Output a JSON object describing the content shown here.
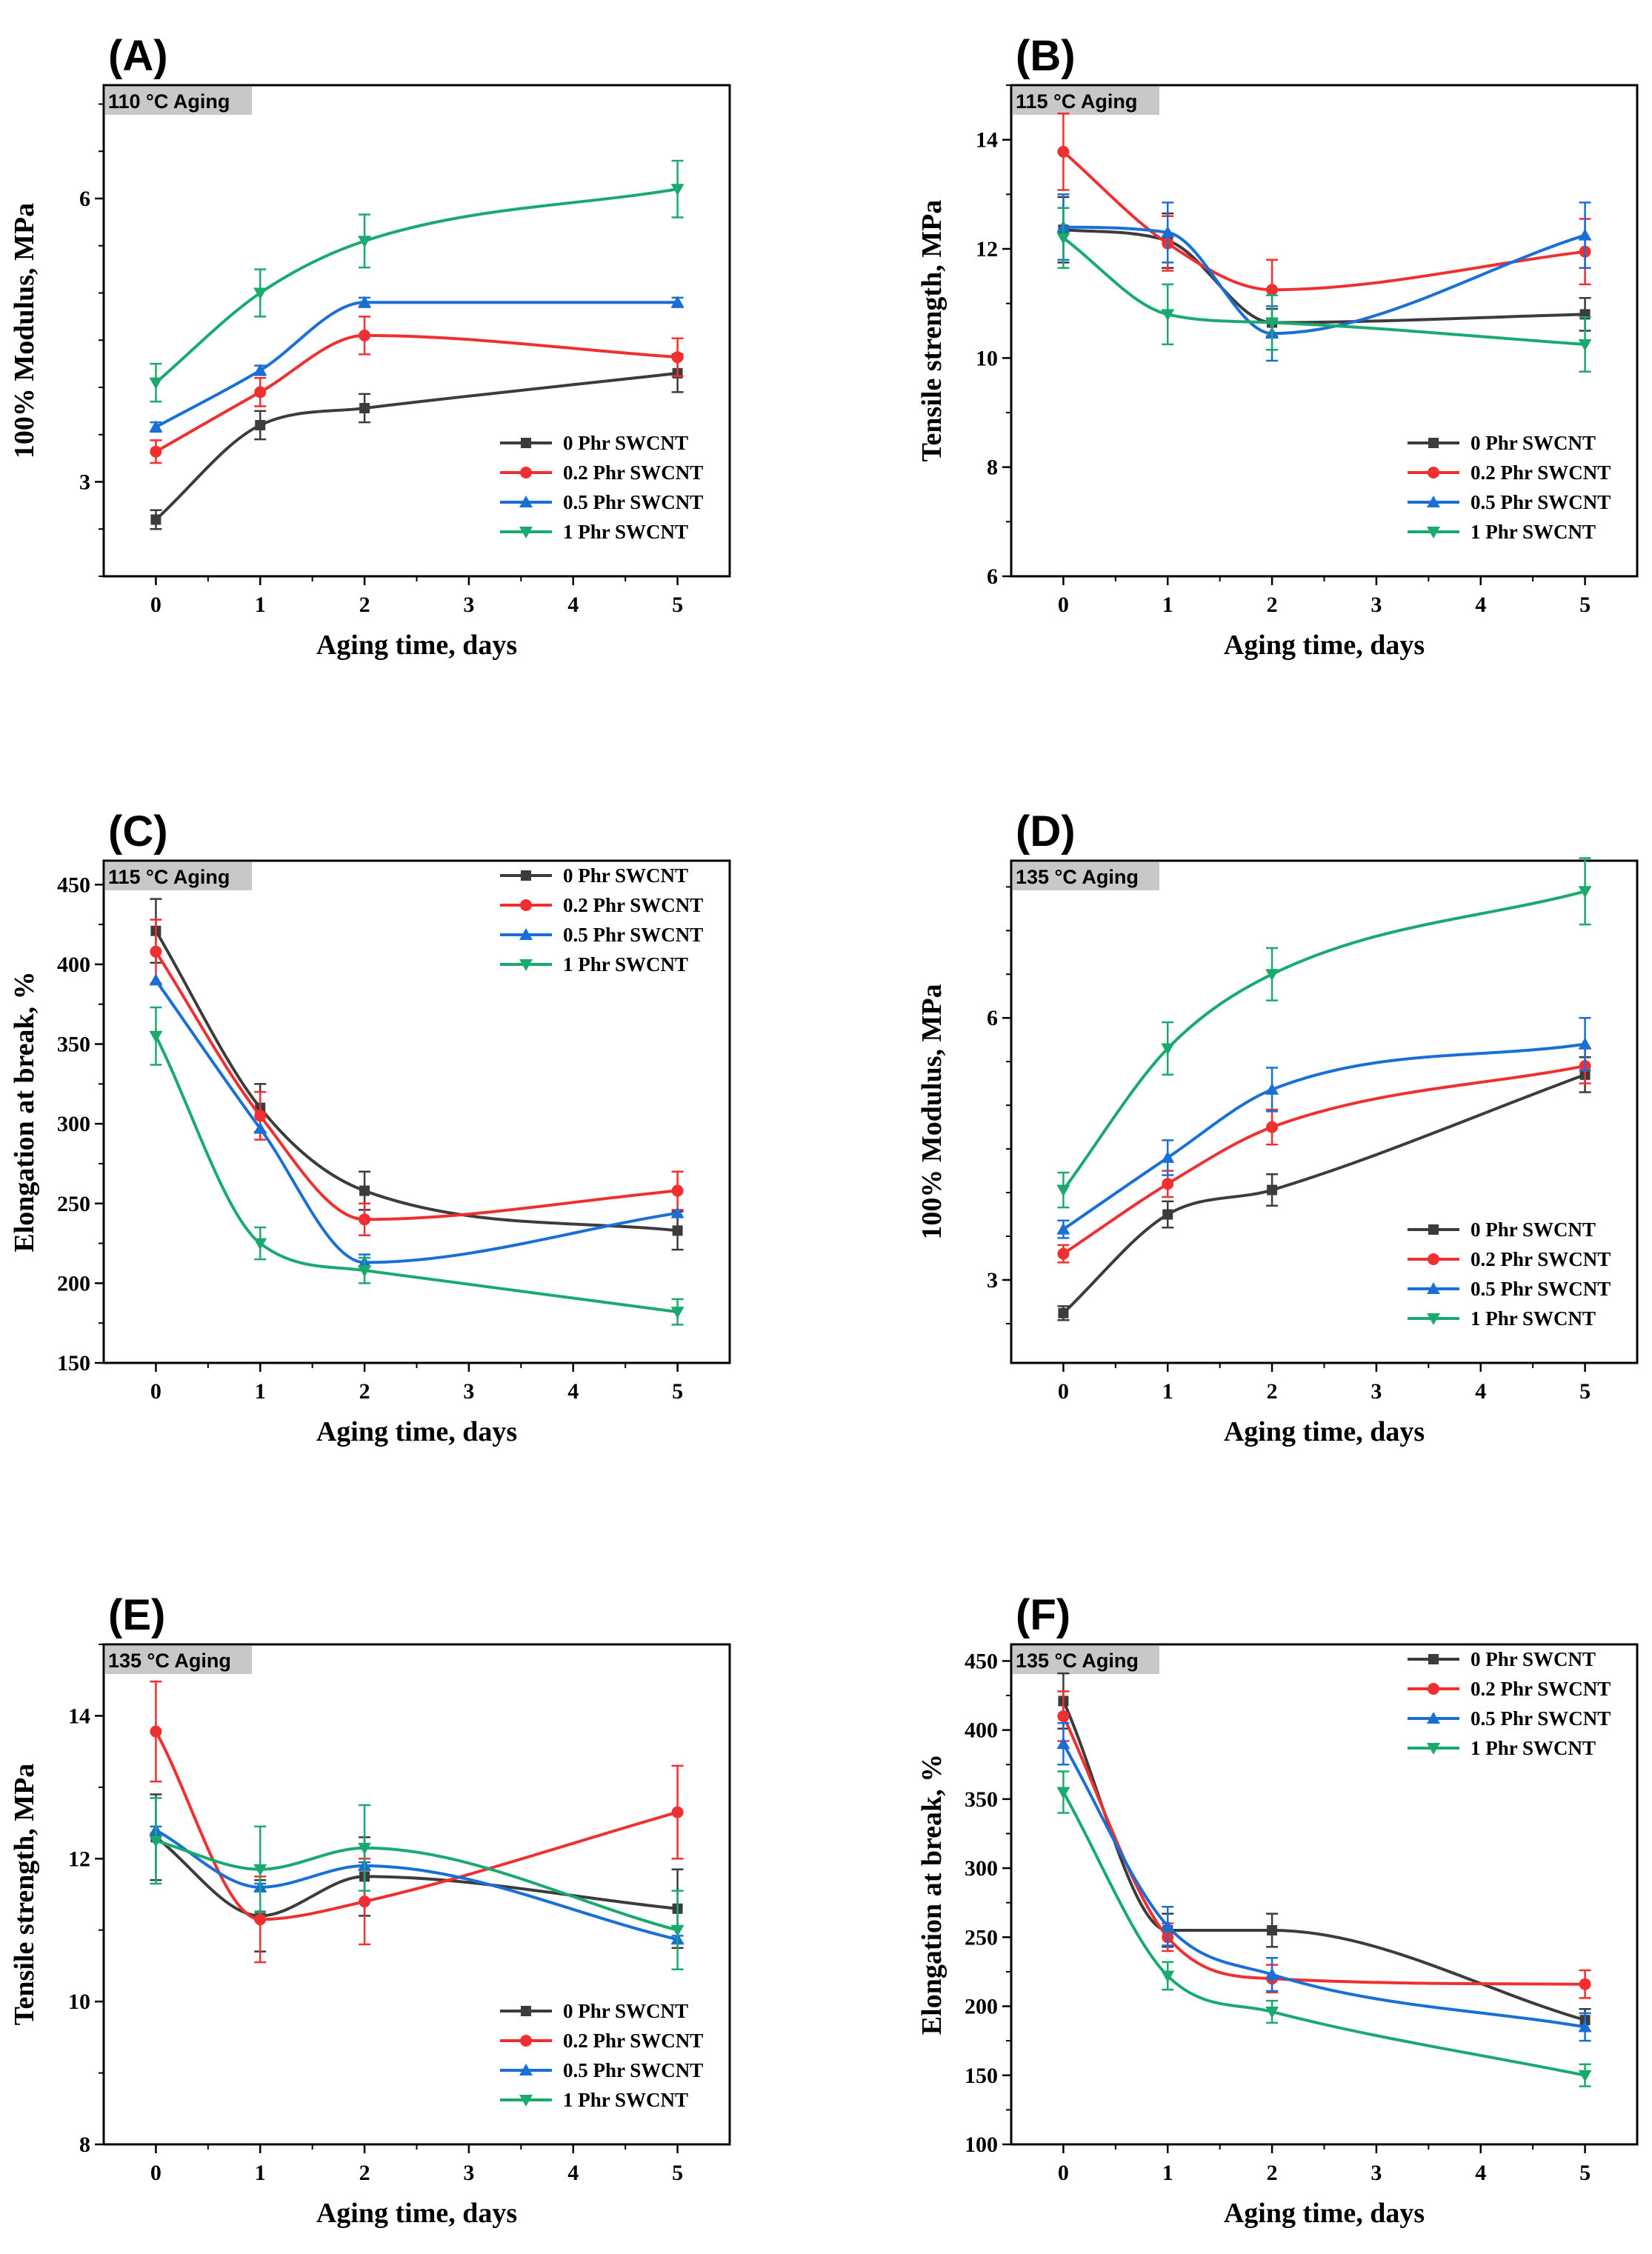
{
  "figure": {
    "legend_entries": [
      "0  Phr SWCNT",
      "0.2 Phr SWCNT",
      "0.5 Phr SWCNT",
      "1  Phr SWCNT"
    ],
    "series_colors": [
      "#3c3c3c",
      "#f03030",
      "#1a6fd6",
      "#1aaa70"
    ],
    "marker_shapes": [
      "square-marker",
      "circle-marker",
      "triangle-up-marker",
      "triangle-down-marker"
    ]
  },
  "chart_data": [
    {
      "id": "A",
      "panel_label": "(A)",
      "condition_label": "110 °C Aging",
      "type": "line",
      "xlabel": "Aging time, days",
      "ylabel": "100% Modulus, MPa",
      "xlim": [
        -0.5,
        5.5
      ],
      "ylim": [
        2,
        7.2
      ],
      "xticks": [
        0,
        1,
        2,
        3,
        4,
        5
      ],
      "yticks": [
        3,
        6
      ],
      "yminor": 0.5,
      "legend_position": "bottom-right",
      "x": [
        0,
        1,
        2,
        5
      ],
      "series": [
        {
          "name": "0  Phr SWCNT",
          "values": [
            2.6,
            3.6,
            3.78,
            4.15
          ],
          "errors": [
            0.1,
            0.15,
            0.15,
            0.2
          ]
        },
        {
          "name": "0.2 Phr SWCNT",
          "values": [
            3.32,
            3.95,
            4.55,
            4.32
          ],
          "errors": [
            0.12,
            0.15,
            0.2,
            0.2
          ]
        },
        {
          "name": "0.5 Phr SWCNT",
          "values": [
            3.58,
            4.18,
            4.9,
            4.9
          ],
          "errors": [
            0.05,
            0.05,
            0.05,
            0.05
          ]
        },
        {
          "name": "1  Phr SWCNT",
          "values": [
            4.05,
            5.0,
            5.55,
            6.1
          ],
          "errors": [
            0.2,
            0.25,
            0.28,
            0.3
          ]
        }
      ]
    },
    {
      "id": "B",
      "panel_label": "(B)",
      "condition_label": "115 °C Aging",
      "type": "line",
      "xlabel": "Aging time, days",
      "ylabel": "Tensile strength, MPa",
      "xlim": [
        -0.5,
        5.5
      ],
      "ylim": [
        6,
        15
      ],
      "xticks": [
        0,
        1,
        2,
        3,
        4,
        5
      ],
      "yticks": [
        6,
        8,
        10,
        12,
        14
      ],
      "yminor": 1,
      "legend_position": "bottom-right",
      "x": [
        0,
        1,
        2,
        5
      ],
      "series": [
        {
          "name": "0  Phr SWCNT",
          "values": [
            12.35,
            12.15,
            10.65,
            10.8
          ],
          "errors": [
            0.6,
            0.5,
            0.25,
            0.3
          ]
        },
        {
          "name": "0.2 Phr SWCNT",
          "values": [
            13.78,
            12.1,
            11.25,
            11.95
          ],
          "errors": [
            0.7,
            0.5,
            0.55,
            0.6
          ]
        },
        {
          "name": "0.5 Phr SWCNT",
          "values": [
            12.4,
            12.3,
            10.45,
            12.25
          ],
          "errors": [
            0.6,
            0.55,
            0.5,
            0.6
          ]
        },
        {
          "name": "1  Phr SWCNT",
          "values": [
            12.2,
            10.8,
            10.65,
            10.25
          ],
          "errors": [
            0.55,
            0.55,
            0.5,
            0.5
          ]
        }
      ]
    },
    {
      "id": "C",
      "panel_label": "(C)",
      "condition_label": "115 °C Aging",
      "type": "line",
      "xlabel": "Aging time, days",
      "ylabel": "Elongation at break, %",
      "xlim": [
        -0.5,
        5.5
      ],
      "ylim": [
        150,
        465
      ],
      "xticks": [
        0,
        1,
        2,
        3,
        4,
        5
      ],
      "yticks": [
        150,
        200,
        250,
        300,
        350,
        400,
        450
      ],
      "yminor": 25,
      "legend_position": "top-right",
      "x": [
        0,
        1,
        2,
        5
      ],
      "series": [
        {
          "name": "0  Phr SWCNT",
          "values": [
            421,
            310,
            258,
            233
          ],
          "errors": [
            20,
            15,
            12,
            12
          ]
        },
        {
          "name": "0.2 Phr SWCNT",
          "values": [
            408,
            305,
            240,
            258
          ],
          "errors": [
            20,
            15,
            10,
            12
          ]
        },
        {
          "name": "0.5 Phr SWCNT",
          "values": [
            390,
            297,
            213,
            244
          ],
          "errors": [
            0,
            0,
            5,
            0
          ]
        },
        {
          "name": "1  Phr SWCNT",
          "values": [
            355,
            225,
            208,
            182
          ],
          "errors": [
            18,
            10,
            8,
            8
          ]
        }
      ]
    },
    {
      "id": "D",
      "panel_label": "(D)",
      "condition_label": "135 °C Aging",
      "type": "line",
      "xlabel": "Aging time, days",
      "ylabel": "100% Modulus, MPa",
      "xlim": [
        -0.5,
        5.5
      ],
      "ylim": [
        2.05,
        7.8
      ],
      "xticks": [
        0,
        1,
        2,
        3,
        4,
        5
      ],
      "yticks": [
        3,
        6
      ],
      "yminor": 0.5,
      "legend_position": "bottom-right",
      "x": [
        0,
        1,
        2,
        5
      ],
      "series": [
        {
          "name": "0  Phr SWCNT",
          "values": [
            2.62,
            3.75,
            4.03,
            5.35
          ],
          "errors": [
            0.08,
            0.15,
            0.18,
            0.2
          ]
        },
        {
          "name": "0.2 Phr SWCNT",
          "values": [
            3.3,
            4.1,
            4.75,
            5.45
          ],
          "errors": [
            0.1,
            0.15,
            0.2,
            0.2
          ]
        },
        {
          "name": "0.5 Phr SWCNT",
          "values": [
            3.58,
            4.4,
            5.18,
            5.7
          ],
          "errors": [
            0.1,
            0.2,
            0.25,
            0.3
          ]
        },
        {
          "name": "1  Phr SWCNT",
          "values": [
            4.03,
            5.65,
            6.5,
            7.45
          ],
          "errors": [
            0.2,
            0.3,
            0.3,
            0.38
          ]
        }
      ]
    },
    {
      "id": "E",
      "panel_label": "(E)",
      "condition_label": "135 °C Aging",
      "type": "line",
      "xlabel": "Aging time, days",
      "ylabel": "Tensile strength, MPa",
      "xlim": [
        -0.5,
        5.5
      ],
      "ylim": [
        8,
        15
      ],
      "xticks": [
        0,
        1,
        2,
        3,
        4,
        5
      ],
      "yticks": [
        8,
        10,
        12,
        14
      ],
      "yminor": 1,
      "legend_position": "bottom-right",
      "x": [
        0,
        1,
        2,
        5
      ],
      "series": [
        {
          "name": "0  Phr SWCNT",
          "values": [
            12.3,
            11.2,
            11.75,
            11.3
          ],
          "errors": [
            0.6,
            0.5,
            0.55,
            0.55
          ]
        },
        {
          "name": "0.2 Phr SWCNT",
          "values": [
            13.78,
            11.15,
            11.4,
            12.65
          ],
          "errors": [
            0.7,
            0.6,
            0.6,
            0.65
          ]
        },
        {
          "name": "0.5 Phr SWCNT",
          "values": [
            12.4,
            11.6,
            11.9,
            10.87
          ],
          "errors": [
            0.05,
            0.05,
            0.05,
            0.05
          ]
        },
        {
          "name": "1  Phr SWCNT",
          "values": [
            12.25,
            11.85,
            12.15,
            11.0
          ],
          "errors": [
            0.6,
            0.6,
            0.6,
            0.55
          ]
        }
      ]
    },
    {
      "id": "F",
      "panel_label": "(F)",
      "condition_label": "135 °C Aging",
      "type": "line",
      "xlabel": "Aging time, days",
      "ylabel": "Elongation at break, %",
      "xlim": [
        -0.5,
        5.5
      ],
      "ylim": [
        100,
        462
      ],
      "xticks": [
        0,
        1,
        2,
        3,
        4,
        5
      ],
      "yticks": [
        100,
        150,
        200,
        250,
        300,
        350,
        400,
        450
      ],
      "yminor": 25,
      "legend_position": "top-right",
      "x": [
        0,
        1,
        2,
        5
      ],
      "series": [
        {
          "name": "0  Phr SWCNT",
          "values": [
            421,
            255,
            255,
            190
          ],
          "errors": [
            20,
            12,
            12,
            8
          ]
        },
        {
          "name": "0.2 Phr SWCNT",
          "values": [
            410,
            250,
            220,
            216
          ],
          "errors": [
            18,
            10,
            10,
            10
          ]
        },
        {
          "name": "0.5 Phr SWCNT",
          "values": [
            390,
            258,
            223,
            185
          ],
          "errors": [
            15,
            14,
            12,
            10
          ]
        },
        {
          "name": "1  Phr SWCNT",
          "values": [
            355,
            222,
            196,
            150
          ],
          "errors": [
            15,
            10,
            8,
            8
          ]
        }
      ]
    }
  ]
}
